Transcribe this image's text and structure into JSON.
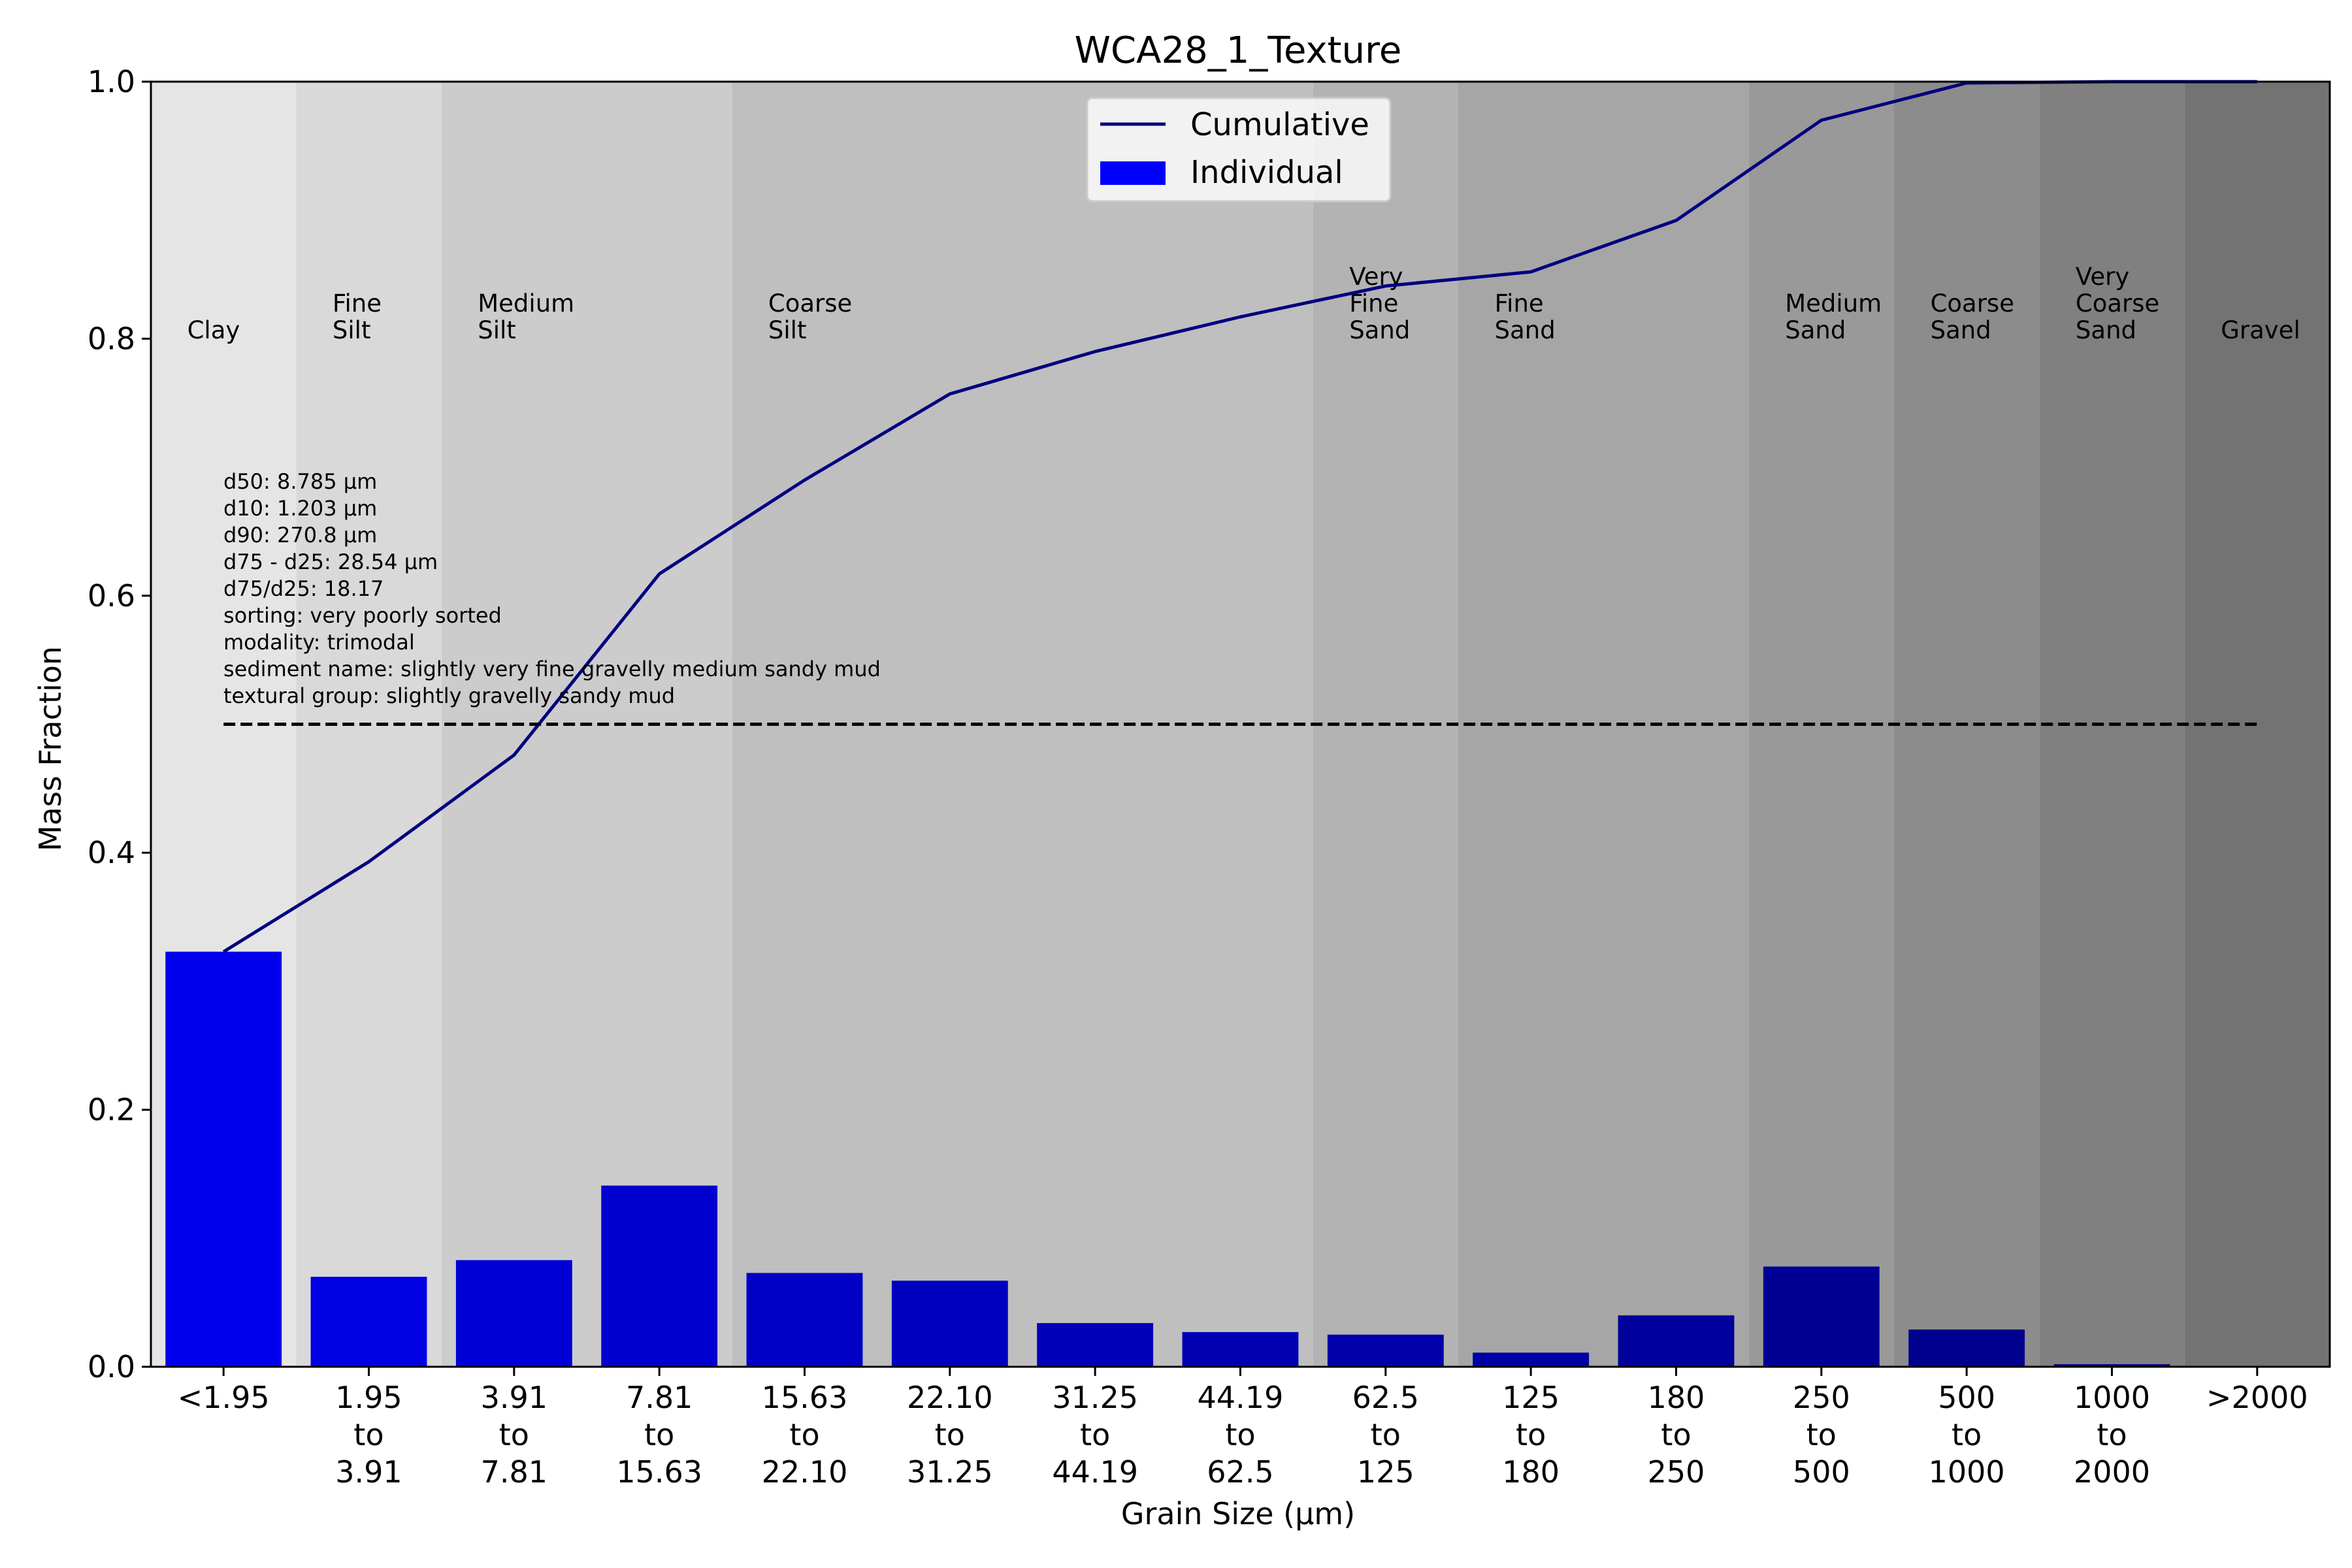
{
  "chart_data": {
    "type": "bar",
    "title": "WCA28_1_Texture",
    "xlabel": "Grain Size (μm)",
    "ylabel": "Mass Fraction",
    "ylim": [
      0,
      1.0
    ],
    "yticks": [
      "0.0",
      "0.2",
      "0.4",
      "0.6",
      "0.8",
      "1.0"
    ],
    "categories": [
      [
        "<1.95"
      ],
      [
        "1.95",
        "to",
        "3.91"
      ],
      [
        "3.91",
        "to",
        "7.81"
      ],
      [
        "7.81",
        "to",
        "15.63"
      ],
      [
        "15.63",
        "to",
        "22.10"
      ],
      [
        "22.10",
        "to",
        "31.25"
      ],
      [
        "31.25",
        "to",
        "44.19"
      ],
      [
        "44.19",
        "to",
        "62.5"
      ],
      [
        "62.5",
        "to",
        "125"
      ],
      [
        "125",
        "to",
        "180"
      ],
      [
        "180",
        "to",
        "250"
      ],
      [
        "250",
        "to",
        "500"
      ],
      [
        "500",
        "to",
        "1000"
      ],
      [
        "1000",
        "to",
        "2000"
      ],
      [
        ">2000"
      ]
    ],
    "series": [
      {
        "name": "Individual",
        "kind": "bar",
        "values": [
          0.323,
          0.07,
          0.083,
          0.141,
          0.073,
          0.067,
          0.034,
          0.027,
          0.025,
          0.011,
          0.04,
          0.078,
          0.029,
          0.002,
          0.0
        ],
        "colors": [
          "#0000ee",
          "#0000e2",
          "#0000d6",
          "#0000cf",
          "#0000c6",
          "#0000c0",
          "#0000b8",
          "#0000b2",
          "#0000ab",
          "#0000a4",
          "#00009c",
          "#000095",
          "#00008e",
          "#000086",
          "#000080"
        ]
      },
      {
        "name": "Cumulative",
        "kind": "line",
        "color": "#000080",
        "values": [
          0.323,
          0.393,
          0.476,
          0.617,
          0.69,
          0.757,
          0.79,
          0.817,
          0.841,
          0.852,
          0.892,
          0.97,
          0.999,
          1.0,
          1.0
        ]
      }
    ],
    "reference_line": {
      "y": 0.5,
      "style": "dashed",
      "color": "#000000"
    },
    "regions": [
      {
        "label": [
          "Clay"
        ],
        "from": 0,
        "to": 0,
        "color": "#e5e5e5"
      },
      {
        "label": [
          "Fine",
          "Silt"
        ],
        "from": 1,
        "to": 1,
        "color": "#d9d9d9"
      },
      {
        "label": [
          "Medium",
          "Silt"
        ],
        "from": 2,
        "to": 3,
        "color": "#cccccc"
      },
      {
        "label": [
          "Coarse",
          "Silt"
        ],
        "from": 4,
        "to": 7,
        "color": "#bfbfbf"
      },
      {
        "label": [
          "Very",
          "Fine",
          "Sand"
        ],
        "from": 8,
        "to": 8,
        "color": "#b3b3b3"
      },
      {
        "label": [
          "Fine",
          "Sand"
        ],
        "from": 9,
        "to": 10,
        "color": "#a6a6a6"
      },
      {
        "label": [
          "Medium",
          "Sand"
        ],
        "from": 11,
        "to": 11,
        "color": "#999999"
      },
      {
        "label": [
          "Coarse",
          "Sand"
        ],
        "from": 12,
        "to": 12,
        "color": "#8c8c8c"
      },
      {
        "label": [
          "Very",
          "Coarse",
          "Sand"
        ],
        "from": 13,
        "to": 13,
        "color": "#808080"
      },
      {
        "label": [
          "Gravel"
        ],
        "from": 14,
        "to": 14,
        "color": "#737373"
      }
    ],
    "stats": [
      "d50: 8.785 μm",
      "d10: 1.203 μm",
      "d90: 270.8 μm",
      "d75 - d25: 28.54 μm",
      "d75/d25: 18.17",
      "sorting: very poorly sorted",
      "modality: trimodal",
      "sediment name: slightly very fine gravelly medium sandy mud",
      "textural group: slightly gravelly sandy mud"
    ],
    "legend": {
      "position": "upper center",
      "entries": [
        "Cumulative",
        "Individual"
      ]
    },
    "grid": false
  }
}
